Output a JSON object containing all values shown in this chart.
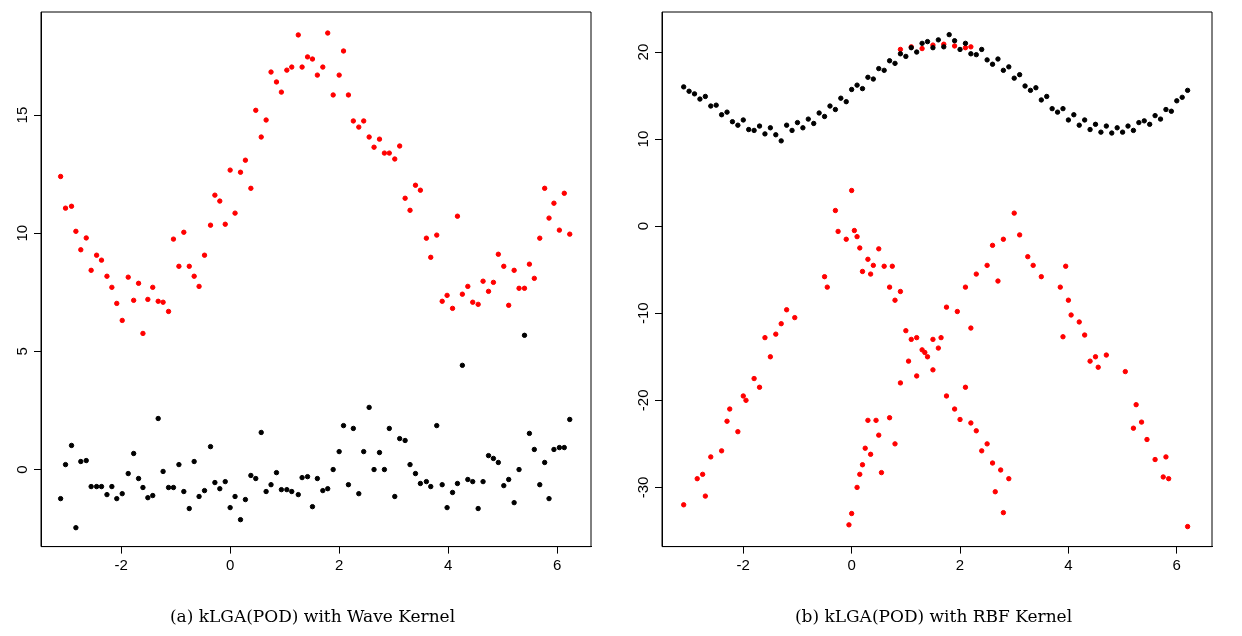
{
  "chart_data": [
    {
      "type": "scatter",
      "title": "(a) kLGA(POD) with Wave Kernel",
      "marker": "circle",
      "xlim": [
        -3.47,
        6.62
      ],
      "ylim": [
        -3.26,
        19.36
      ],
      "xticks": [
        -2,
        0,
        2,
        4,
        6
      ],
      "yticks": [
        0,
        5,
        10,
        15
      ],
      "x": [
        -3.11,
        -3.02,
        -2.91,
        -2.83,
        -2.74,
        -2.64,
        -2.55,
        -2.45,
        -2.36,
        -2.26,
        -2.17,
        -2.08,
        -1.98,
        -1.87,
        -1.77,
        -1.68,
        -1.6,
        -1.51,
        -1.42,
        -1.32,
        -1.23,
        -1.13,
        -1.04,
        -0.94,
        -0.85,
        -0.75,
        -0.66,
        -0.57,
        -0.47,
        -0.36,
        -0.28,
        -0.19,
        -0.09,
        0,
        0.09,
        0.19,
        0.28,
        0.38,
        0.47,
        0.57,
        0.66,
        0.75,
        0.85,
        0.94,
        1.04,
        1.13,
        1.25,
        1.32,
        1.42,
        1.51,
        1.6,
        1.7,
        1.79,
        1.89,
        2.0,
        2.08,
        2.17,
        2.26,
        2.36,
        2.45,
        2.55,
        2.64,
        2.74,
        2.83,
        2.92,
        3.02,
        3.11,
        3.21,
        3.3,
        3.4,
        3.49,
        3.6,
        3.68,
        3.79,
        3.89,
        3.98,
        4.08,
        4.17,
        4.26,
        4.36,
        4.45,
        4.55,
        4.64,
        4.74,
        4.83,
        4.92,
        5.02,
        5.11,
        5.21,
        5.3,
        5.4,
        5.49,
        5.58,
        5.68,
        5.77,
        5.85,
        5.94,
        6.04,
        6.13,
        6.23
      ],
      "series": [
        {
          "color": "#ff0000",
          "values": [
            12.4,
            11.06,
            11.14,
            10.08,
            9.3,
            9.8,
            8.43,
            9.07,
            8.86,
            8.18,
            7.71,
            7.03,
            6.31,
            8.14,
            7.16,
            7.88,
            5.76,
            7.2,
            7.71,
            7.12,
            7.08,
            6.69,
            9.75,
            8.6,
            10.04,
            8.6,
            8.18,
            7.75,
            9.07,
            10.34,
            11.61,
            11.36,
            10.38,
            12.67,
            10.85,
            12.58,
            13.09,
            11.9,
            15.2,
            14.07,
            14.79,
            16.82,
            16.4,
            15.97,
            16.9,
            17.03,
            18.39,
            17.03,
            17.46,
            17.37,
            16.69,
            17.03,
            18.47,
            15.85,
            16.69,
            17.71,
            15.85,
            14.75,
            14.49,
            14.75,
            14.07,
            13.64,
            13.98,
            13.39,
            13.39,
            13.14,
            13.69,
            11.48,
            10.97,
            12.03,
            11.82,
            9.79,
            8.98,
            9.92,
            7.12,
            7.37,
            6.82,
            10.72,
            7.42,
            7.75,
            7.08,
            6.99,
            7.97,
            7.54,
            7.92,
            9.11,
            8.6,
            6.95,
            8.43,
            7.67,
            7.67,
            8.69,
            8.09,
            9.79,
            11.9,
            10.64,
            11.27,
            10.13,
            11.69,
            9.96
          ]
        },
        {
          "color": "#000000",
          "values": [
            -1.23,
            0.21,
            1.02,
            -2.46,
            0.34,
            0.38,
            -0.72,
            -0.72,
            -0.72,
            -1.06,
            -0.72,
            -1.23,
            -1.02,
            -0.17,
            0.68,
            -0.38,
            -0.76,
            -1.19,
            -1.1,
            2.16,
            -0.08,
            -0.76,
            -0.76,
            0.21,
            -0.93,
            -1.65,
            0.34,
            -1.14,
            -0.89,
            0.97,
            -0.55,
            -0.81,
            -0.51,
            -1.61,
            -1.14,
            -2.12,
            -1.27,
            -0.25,
            -0.38,
            1.57,
            -0.93,
            -0.64,
            -0.13,
            -0.85,
            -0.85,
            -0.93,
            -1.06,
            -0.34,
            -0.3,
            -1.57,
            -0.38,
            -0.89,
            -0.81,
            0,
            0.76,
            1.86,
            -0.64,
            1.74,
            -1.02,
            0.76,
            2.63,
            0,
            0.72,
            0,
            1.74,
            -1.14,
            1.31,
            1.23,
            0.21,
            -0.17,
            -0.59,
            -0.51,
            -0.72,
            1.86,
            -0.64,
            -1.61,
            -0.97,
            -0.59,
            4.41,
            -0.42,
            -0.51,
            -1.65,
            -0.51,
            0.59,
            0.47,
            0.3,
            -0.68,
            -0.42,
            -1.4,
            0,
            5.68,
            1.53,
            0.85,
            -0.64,
            0.3,
            -1.23,
            0.85,
            0.93,
            0.93,
            2.12
          ]
        }
      ]
    },
    {
      "type": "scatter",
      "title": "(b) kLGA(POD) with RBF Kernel",
      "marker": "circle",
      "xlim": [
        -3.5,
        6.65
      ],
      "ylim": [
        -36.8,
        24.6
      ],
      "xticks": [
        -2,
        0,
        2,
        4,
        6
      ],
      "yticks": [
        -30,
        -20,
        -10,
        0,
        10,
        20
      ],
      "series": [
        {
          "color": "#000000",
          "x": [
            -3.1,
            -3.0,
            -2.9,
            -2.8,
            -2.7,
            -2.6,
            -2.5,
            -2.4,
            -2.3,
            -2.2,
            -2.1,
            -2.0,
            -1.9,
            -1.8,
            -1.7,
            -1.6,
            -1.5,
            -1.4,
            -1.3,
            -1.2,
            -1.1,
            -1.0,
            -0.9,
            -0.8,
            -0.7,
            -0.6,
            -0.5,
            -0.4,
            -0.3,
            -0.2,
            -0.1,
            0.0,
            0.1,
            0.2,
            0.3,
            0.4,
            0.5,
            0.6,
            0.7,
            0.8,
            0.9,
            1.0,
            1.1,
            1.2,
            1.3,
            1.4,
            1.5,
            1.6,
            1.7,
            1.8,
            1.9,
            2.0,
            2.1,
            2.2,
            2.3,
            2.4,
            2.5,
            2.6,
            2.7,
            2.8,
            2.9,
            3.0,
            3.1,
            3.2,
            3.3,
            3.4,
            3.5,
            3.6,
            3.7,
            3.8,
            3.9,
            4.0,
            4.1,
            4.2,
            4.3,
            4.4,
            4.5,
            4.6,
            4.7,
            4.8,
            4.9,
            5.0,
            5.1,
            5.2,
            5.3,
            5.4,
            5.5,
            5.6,
            5.7,
            5.8,
            5.9,
            6.0,
            6.1,
            6.2
          ],
          "values": [
            16.0,
            15.5,
            15.2,
            14.6,
            14.9,
            13.8,
            13.9,
            12.8,
            13.1,
            12.0,
            11.6,
            12.2,
            11.1,
            11.0,
            11.5,
            10.6,
            11.3,
            10.5,
            9.8,
            11.6,
            11.0,
            11.9,
            11.3,
            12.3,
            11.8,
            13.0,
            12.6,
            13.8,
            13.4,
            14.7,
            14.3,
            15.7,
            16.2,
            15.8,
            17.1,
            16.9,
            18.1,
            17.9,
            19.0,
            18.7,
            19.8,
            19.5,
            20.5,
            20.0,
            21.0,
            21.2,
            20.5,
            21.4,
            20.6,
            22.0,
            21.3,
            20.3,
            21.0,
            19.8,
            19.7,
            20.3,
            19.1,
            18.6,
            19.2,
            17.9,
            18.3,
            17.0,
            17.4,
            16.1,
            15.6,
            15.9,
            14.5,
            14.9,
            13.5,
            13.1,
            13.5,
            12.2,
            12.8,
            11.6,
            12.2,
            11.1,
            11.7,
            10.8,
            11.5,
            10.7,
            11.3,
            10.8,
            11.5,
            11.0,
            11.9,
            12.1,
            11.7,
            12.7,
            12.3,
            13.4,
            13.2,
            14.4,
            14.8,
            15.6
          ]
        },
        {
          "color": "#ff0000",
          "x": [
            0.9,
            1.1,
            1.3,
            1.5,
            1.7,
            1.9,
            2.1,
            2.2,
            -3.1,
            -2.85,
            -2.75,
            -2.7,
            -2.6,
            -2.4,
            -2.3,
            -2.25,
            -2.1,
            -2.0,
            -1.95,
            -1.8,
            -1.7,
            -1.6,
            -1.5,
            -1.4,
            -1.3,
            -1.2,
            -1.05,
            -0.5,
            -0.45,
            -0.3,
            -0.25,
            -0.1,
            0,
            0.05,
            0.1,
            0.15,
            0.2,
            0.3,
            0.35,
            0.4,
            0.5,
            0.6,
            0.7,
            0.75,
            0.8,
            0.9,
            1.0,
            1.1,
            1.2,
            1.3,
            1.4,
            1.5,
            1.6,
            1.75,
            1.9,
            2.0,
            2.1,
            2.2,
            2.3,
            2.4,
            2.5,
            2.6,
            2.65,
            2.75,
            2.8,
            2.9,
            -0.05,
            0,
            0.1,
            0.15,
            0.2,
            0.25,
            0.3,
            0.35,
            0.45,
            0.5,
            0.55,
            0.7,
            0.8,
            0.9,
            1.05,
            1.2,
            1.35,
            1.5,
            1.65,
            1.75,
            1.95,
            2.1,
            2.2,
            2.3,
            2.5,
            2.6,
            2.7,
            2.8,
            3.0,
            3.1,
            3.25,
            3.35,
            3.5,
            3.85,
            3.9,
            3.95,
            4.0,
            4.05,
            4.2,
            4.3,
            4.4,
            4.5,
            4.55,
            4.7,
            5.05,
            5.2,
            5.25,
            5.35,
            5.45,
            5.6,
            5.75,
            5.8,
            5.85,
            6.2
          ],
          "values": [
            20.3,
            20.6,
            20.4,
            20.8,
            20.9,
            20.7,
            20.5,
            20.6,
            -32,
            -29,
            -28.5,
            -31,
            -26.5,
            -25.8,
            -22.4,
            -21,
            -23.6,
            -19.5,
            -20,
            -17.5,
            -18.5,
            -12.8,
            -15,
            -12.4,
            -11.2,
            -9.6,
            -10.5,
            -5.8,
            -7,
            1.8,
            -0.6,
            -1.5,
            4.1,
            -0.5,
            -1.2,
            -2.5,
            -5.2,
            -3.8,
            -5.5,
            -4.5,
            -2.6,
            -4.6,
            -7,
            -4.6,
            -8.5,
            -7.5,
            -12,
            -13,
            -12.8,
            -14.2,
            -15,
            -16.5,
            -14,
            -19.5,
            -21,
            -22.2,
            -18.5,
            -22.6,
            -23.5,
            -25.8,
            -25,
            -27.2,
            -30.5,
            -28,
            -32.9,
            -29,
            -34.3,
            -33,
            -30,
            -28.5,
            -27.4,
            -25.5,
            -22.3,
            -26.2,
            -22.3,
            -24,
            -28.3,
            -22,
            -25,
            -18,
            -15.5,
            -17.2,
            -14.5,
            -13,
            -12.8,
            -9.3,
            -9.8,
            -7,
            -11.7,
            -5.5,
            -4.5,
            -2.2,
            -6.3,
            -1.5,
            1.5,
            -1,
            -3.5,
            -4.5,
            -5.8,
            -7,
            -12.7,
            -4.6,
            -8.5,
            -10.2,
            -11,
            -12.5,
            -15.5,
            -15,
            -16.2,
            -14.8,
            -16.7,
            -23.2,
            -20.5,
            -22.5,
            -24.5,
            -26.8,
            -28.8,
            -26.5,
            -29,
            -34.5
          ]
        }
      ]
    }
  ]
}
